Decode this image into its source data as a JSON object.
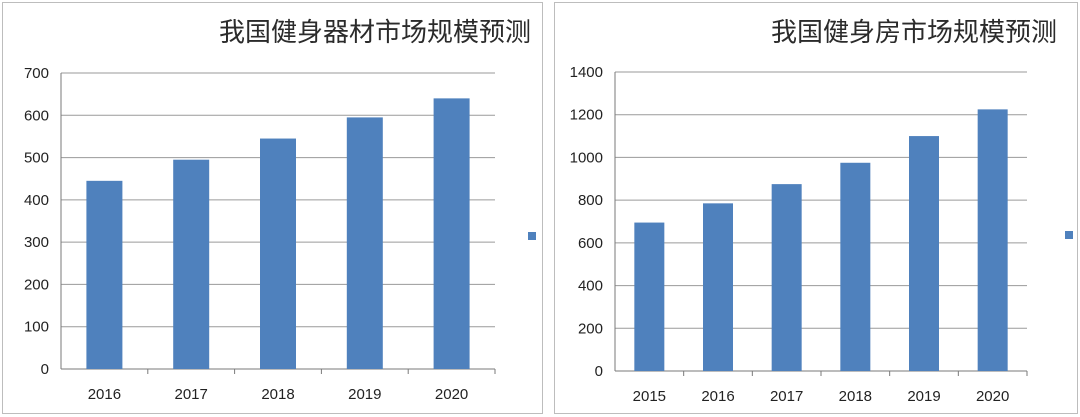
{
  "chart_data": [
    {
      "type": "bar",
      "title": "我国健身器材市场规模预测",
      "categories": [
        "2016",
        "2017",
        "2018",
        "2019",
        "2020"
      ],
      "values": [
        445,
        495,
        545,
        595,
        640
      ],
      "yticks": [
        "0",
        "100",
        "200",
        "300",
        "400",
        "500",
        "600",
        "700"
      ],
      "ylim": [
        0,
        700
      ],
      "xlabel": "",
      "ylabel": "",
      "grid": true,
      "legend": "right",
      "color": "#4f81bd"
    },
    {
      "type": "bar",
      "title": "我国健身房市场规模预测",
      "categories": [
        "2015",
        "2016",
        "2017",
        "2018",
        "2019",
        "2020"
      ],
      "values": [
        695,
        785,
        875,
        975,
        1100,
        1225
      ],
      "yticks": [
        "0",
        "200",
        "400",
        "600",
        "800",
        "1000",
        "1200",
        "1400"
      ],
      "ylim": [
        0,
        1400
      ],
      "xlabel": "",
      "ylabel": "",
      "grid": true,
      "legend": "right",
      "color": "#4f81bd"
    }
  ]
}
